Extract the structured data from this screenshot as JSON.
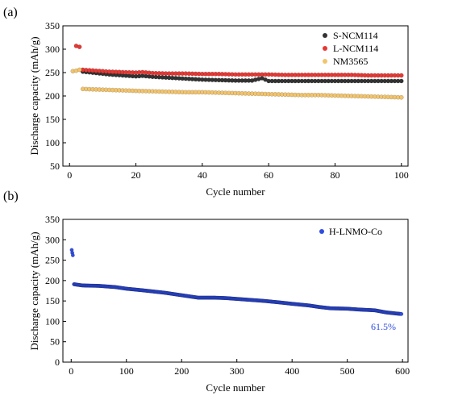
{
  "chart_data": [
    {
      "panel_label": "(a)",
      "type": "scatter",
      "xlabel": "Cycle number",
      "ylabel": "Discharge capacity (mAh/g)",
      "xlim": [
        -2,
        102
      ],
      "ylim": [
        50,
        350
      ],
      "xticks": [
        0,
        20,
        40,
        60,
        80,
        100
      ],
      "yticks": [
        50,
        100,
        150,
        200,
        250,
        300,
        350
      ],
      "legend_position": "top-right",
      "series": [
        {
          "name": "S-NCM114",
          "color": "#333333",
          "points": [
            [
              4,
              252
            ],
            [
              8,
              249
            ],
            [
              12,
              246
            ],
            [
              16,
              244
            ],
            [
              20,
              242
            ],
            [
              22,
              243
            ],
            [
              25,
              241
            ],
            [
              30,
              239
            ],
            [
              35,
              237
            ],
            [
              40,
              235
            ],
            [
              45,
              234
            ],
            [
              50,
              233
            ],
            [
              55,
              233
            ],
            [
              58,
              238
            ],
            [
              60,
              232
            ],
            [
              65,
              232
            ],
            [
              70,
              232
            ],
            [
              75,
              232
            ],
            [
              80,
              232
            ],
            [
              85,
              232
            ],
            [
              90,
              232
            ],
            [
              95,
              232
            ],
            [
              100,
              232
            ]
          ]
        },
        {
          "name": "L-NCM114",
          "color": "#e53935",
          "points": [
            [
              2,
              307
            ],
            [
              3,
              305
            ],
            [
              4,
              256
            ],
            [
              8,
              254
            ],
            [
              12,
              252
            ],
            [
              16,
              251
            ],
            [
              20,
              250
            ],
            [
              22,
              251
            ],
            [
              25,
              249
            ],
            [
              30,
              248
            ],
            [
              35,
              248
            ],
            [
              40,
              247
            ],
            [
              45,
              247
            ],
            [
              50,
              246
            ],
            [
              55,
              246
            ],
            [
              60,
              246
            ],
            [
              65,
              245
            ],
            [
              70,
              245
            ],
            [
              75,
              245
            ],
            [
              80,
              245
            ],
            [
              85,
              245
            ],
            [
              90,
              244
            ],
            [
              95,
              244
            ],
            [
              100,
              244
            ]
          ]
        },
        {
          "name": "NM3565",
          "color": "#f2c46d",
          "points": [
            [
              1,
              253
            ],
            [
              2,
              254
            ],
            [
              3,
              256
            ],
            [
              4,
              215
            ],
            [
              8,
              214
            ],
            [
              12,
              213
            ],
            [
              16,
              212
            ],
            [
              20,
              211
            ],
            [
              25,
              210
            ],
            [
              30,
              209
            ],
            [
              35,
              208
            ],
            [
              40,
              208
            ],
            [
              45,
              207
            ],
            [
              50,
              206
            ],
            [
              55,
              205
            ],
            [
              60,
              204
            ],
            [
              65,
              203
            ],
            [
              70,
              202
            ],
            [
              75,
              202
            ],
            [
              80,
              201
            ],
            [
              85,
              200
            ],
            [
              90,
              199
            ],
            [
              95,
              198
            ],
            [
              100,
              197
            ]
          ]
        }
      ]
    },
    {
      "panel_label": "(b)",
      "type": "scatter",
      "xlabel": "Cycle number",
      "ylabel": "Discharge capacity (mAh/g)",
      "xlim": [
        -15,
        610
      ],
      "ylim": [
        0,
        350
      ],
      "xticks": [
        0,
        100,
        200,
        300,
        400,
        500,
        600
      ],
      "yticks": [
        0,
        50,
        100,
        150,
        200,
        250,
        300,
        350
      ],
      "legend_position": "top-right",
      "annotation": "61.5%",
      "series": [
        {
          "name": "H-LNMO-Co",
          "color": "#2f4de0",
          "points": [
            [
              1,
              275
            ],
            [
              2,
              268
            ],
            [
              3,
              262
            ],
            [
              5,
              191
            ],
            [
              20,
              188
            ],
            [
              50,
              187
            ],
            [
              80,
              184
            ],
            [
              100,
              180
            ],
            [
              130,
              176
            ],
            [
              150,
              173
            ],
            [
              170,
              170
            ],
            [
              200,
              164
            ],
            [
              230,
              158
            ],
            [
              260,
              158
            ],
            [
              280,
              157
            ],
            [
              300,
              155
            ],
            [
              320,
              153
            ],
            [
              350,
              150
            ],
            [
              380,
              146
            ],
            [
              400,
              143
            ],
            [
              430,
              139
            ],
            [
              450,
              135
            ],
            [
              470,
              132
            ],
            [
              500,
              131
            ],
            [
              520,
              129
            ],
            [
              550,
              127
            ],
            [
              570,
              122
            ],
            [
              590,
              119
            ],
            [
              598,
              118
            ]
          ]
        }
      ]
    }
  ]
}
